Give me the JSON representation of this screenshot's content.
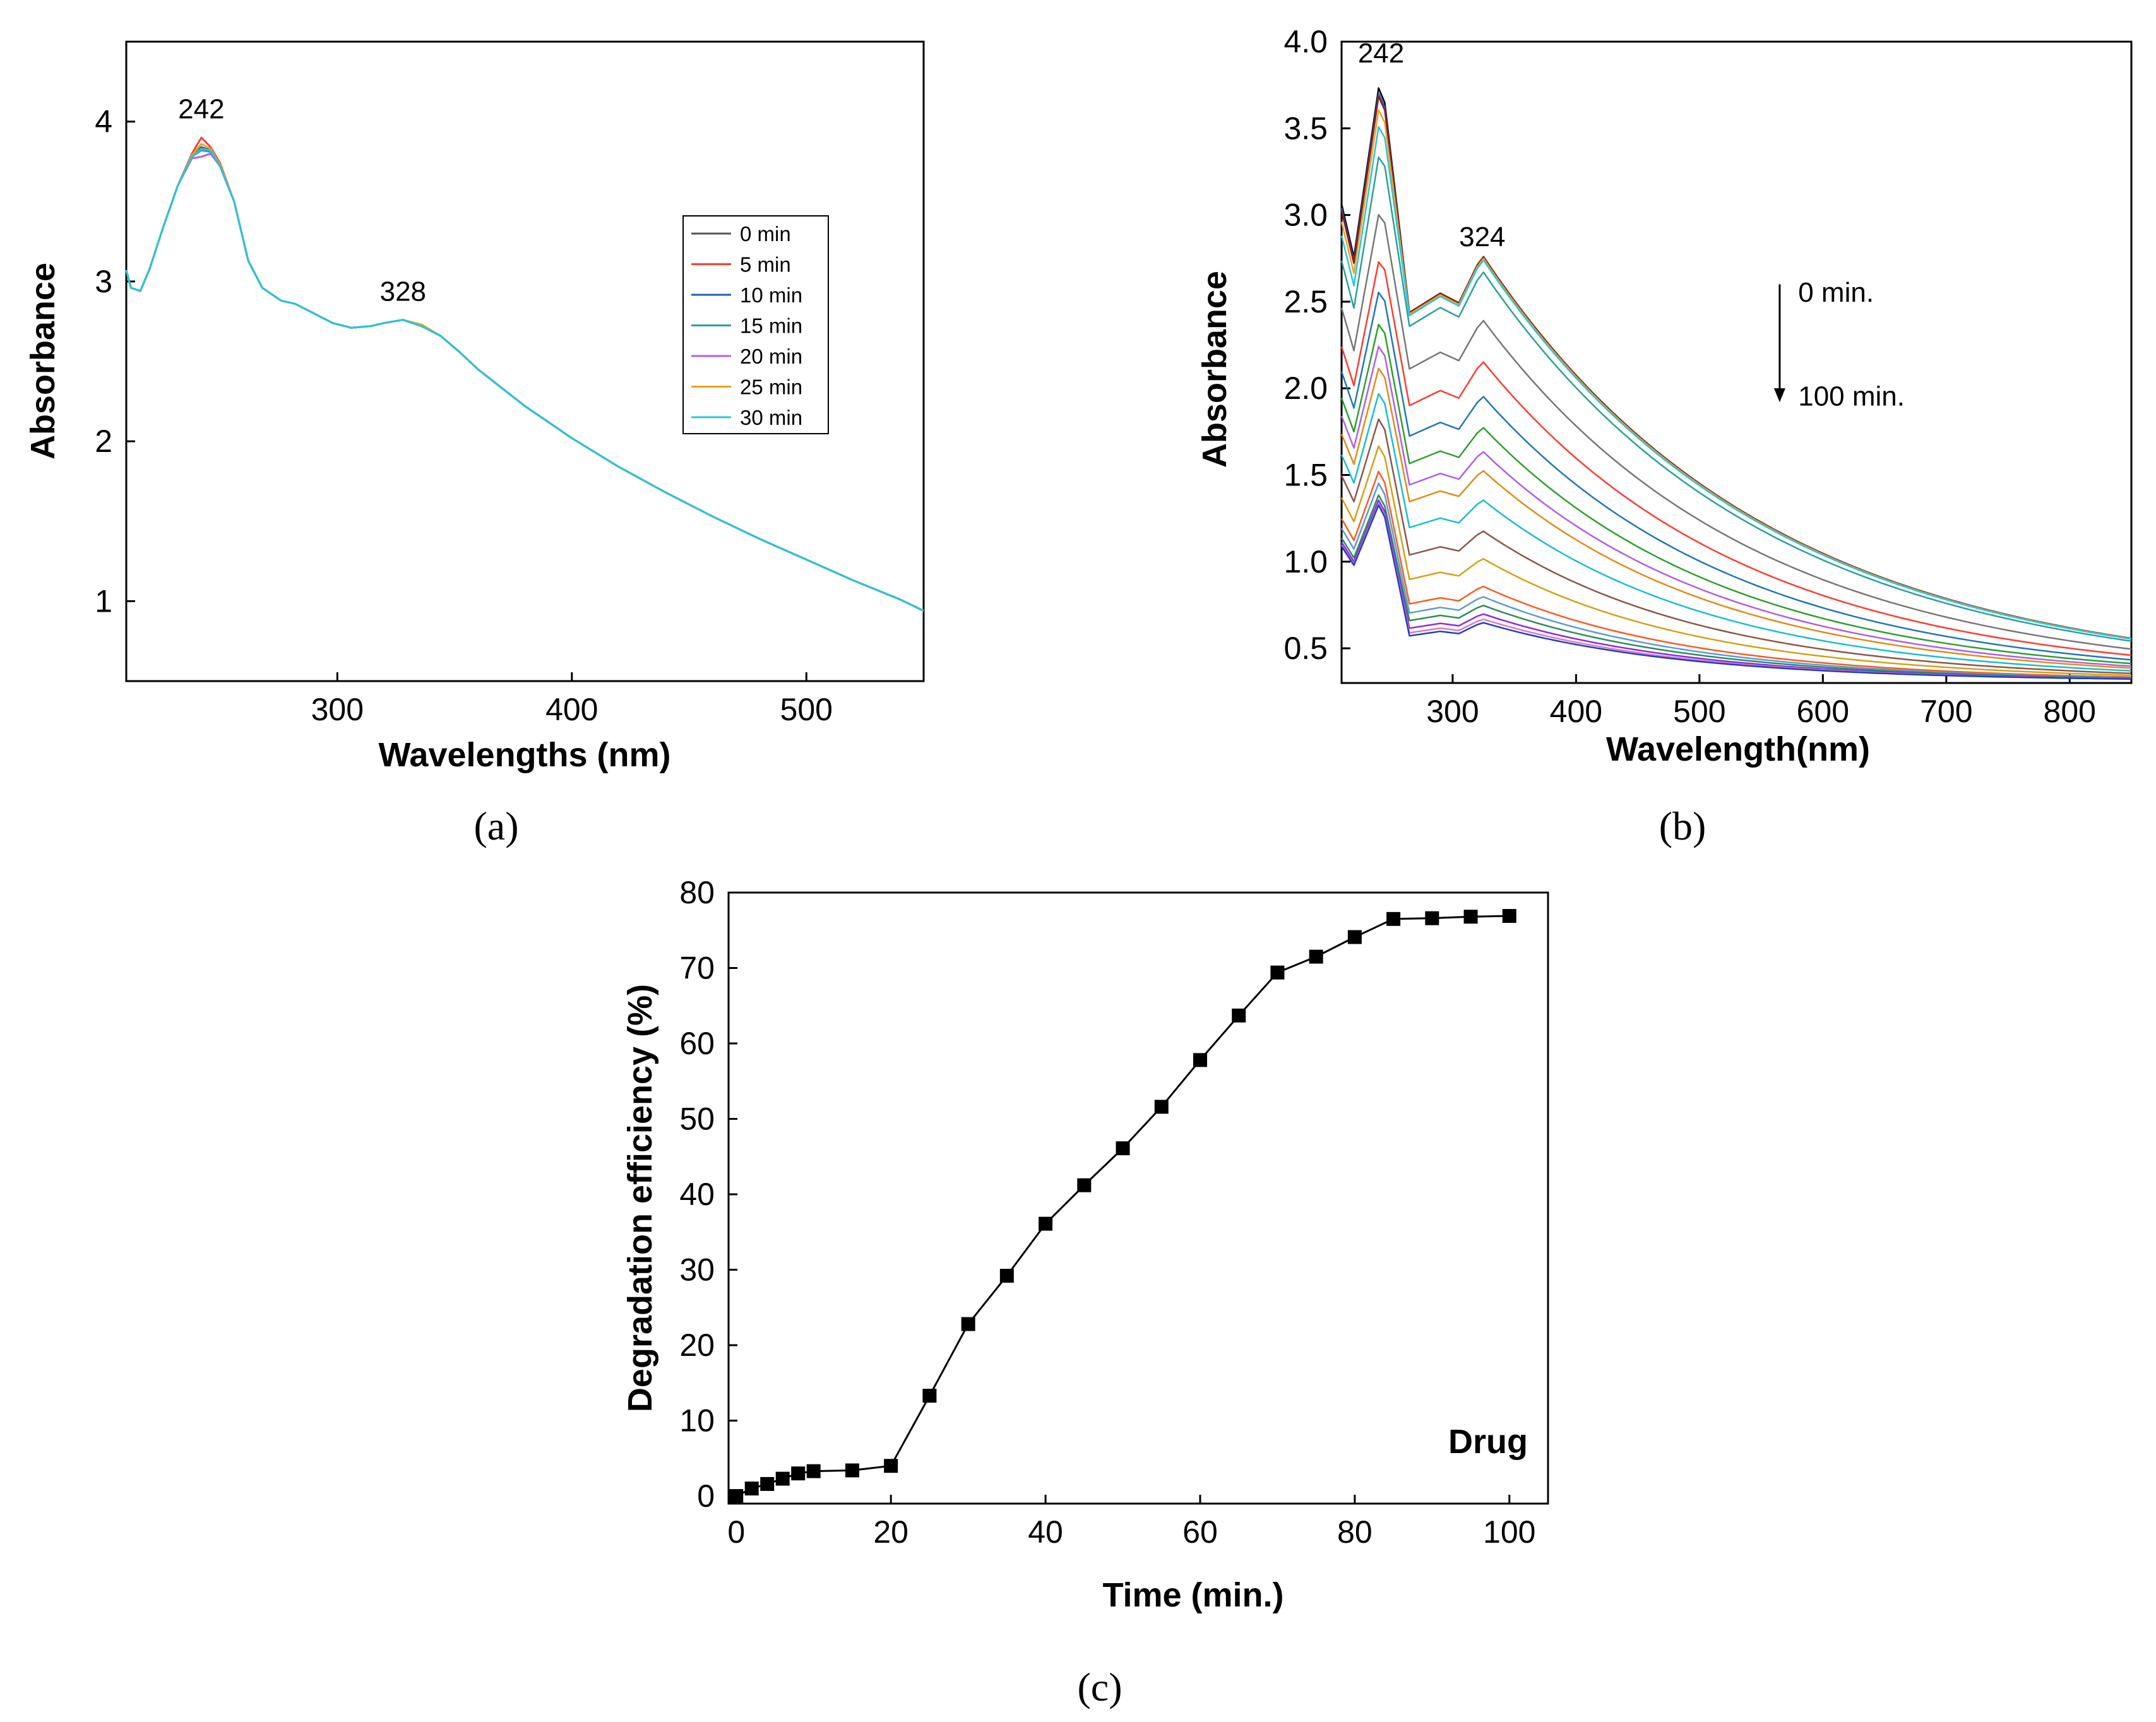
{
  "panel_labels": {
    "a": "(a)",
    "b": "(b)",
    "c": "(c)"
  },
  "chart_data": [
    {
      "panel": "a",
      "type": "line",
      "xlabel": "Wavelengths (nm)",
      "ylabel": "Absorbance",
      "xlim": [
        210,
        550
      ],
      "ylim": [
        0.5,
        4.5
      ],
      "xticks": [
        300,
        400,
        500
      ],
      "yticks": [
        1,
        2,
        3,
        4
      ],
      "grid": false,
      "legend": "right",
      "annotations": [
        {
          "text": "242",
          "x": 242,
          "y": 4.02
        },
        {
          "text": "328",
          "x": 328,
          "y": 2.88
        }
      ],
      "x": [
        210,
        212,
        216,
        220,
        226,
        232,
        238,
        242,
        246,
        250,
        256,
        262,
        268,
        272,
        276,
        282,
        290,
        298,
        306,
        314,
        320,
        328,
        336,
        344,
        352,
        360,
        380,
        400,
        420,
        440,
        460,
        480,
        500,
        520,
        540,
        550
      ],
      "series": [
        {
          "name": "0 min",
          "color": "#555555",
          "values": [
            3.07,
            2.96,
            2.94,
            3.08,
            3.35,
            3.6,
            3.78,
            3.83,
            3.82,
            3.72,
            3.5,
            3.13,
            2.96,
            2.92,
            2.88,
            2.86,
            2.8,
            2.74,
            2.71,
            2.72,
            2.74,
            2.76,
            2.72,
            2.66,
            2.56,
            2.45,
            2.22,
            2.02,
            1.84,
            1.68,
            1.53,
            1.39,
            1.26,
            1.13,
            1.01,
            0.94
          ]
        },
        {
          "name": "5 min",
          "color": "#ff3b30",
          "values": [
            3.07,
            2.96,
            2.94,
            3.08,
            3.35,
            3.6,
            3.8,
            3.9,
            3.84,
            3.74,
            3.5,
            3.13,
            2.96,
            2.92,
            2.88,
            2.86,
            2.8,
            2.74,
            2.71,
            2.72,
            2.74,
            2.76,
            2.72,
            2.66,
            2.56,
            2.45,
            2.22,
            2.02,
            1.84,
            1.68,
            1.53,
            1.39,
            1.26,
            1.13,
            1.01,
            0.94
          ]
        },
        {
          "name": "10 min",
          "color": "#1f5fbf",
          "values": [
            3.07,
            2.96,
            2.94,
            3.08,
            3.35,
            3.6,
            3.79,
            3.84,
            3.82,
            3.72,
            3.5,
            3.13,
            2.96,
            2.92,
            2.88,
            2.86,
            2.8,
            2.74,
            2.71,
            2.72,
            2.74,
            2.76,
            2.72,
            2.66,
            2.56,
            2.45,
            2.22,
            2.02,
            1.84,
            1.68,
            1.53,
            1.39,
            1.26,
            1.13,
            1.01,
            0.94
          ]
        },
        {
          "name": "15 min",
          "color": "#2aa198",
          "values": [
            3.07,
            2.96,
            2.94,
            3.08,
            3.35,
            3.6,
            3.78,
            3.82,
            3.81,
            3.72,
            3.5,
            3.13,
            2.96,
            2.92,
            2.88,
            2.86,
            2.8,
            2.74,
            2.71,
            2.72,
            2.74,
            2.76,
            2.72,
            2.66,
            2.56,
            2.45,
            2.22,
            2.02,
            1.84,
            1.68,
            1.53,
            1.39,
            1.26,
            1.13,
            1.01,
            0.94
          ]
        },
        {
          "name": "20 min",
          "color": "#b05ee6",
          "values": [
            3.07,
            2.96,
            2.94,
            3.08,
            3.35,
            3.6,
            3.77,
            3.78,
            3.8,
            3.72,
            3.5,
            3.13,
            2.96,
            2.92,
            2.88,
            2.86,
            2.8,
            2.74,
            2.71,
            2.72,
            2.74,
            2.76,
            2.72,
            2.66,
            2.56,
            2.45,
            2.22,
            2.02,
            1.84,
            1.68,
            1.53,
            1.39,
            1.26,
            1.13,
            1.01,
            0.94
          ]
        },
        {
          "name": "25 min",
          "color": "#f0a020",
          "values": [
            3.07,
            2.96,
            2.94,
            3.08,
            3.35,
            3.6,
            3.79,
            3.86,
            3.83,
            3.73,
            3.5,
            3.13,
            2.96,
            2.92,
            2.88,
            2.86,
            2.8,
            2.74,
            2.71,
            2.72,
            2.74,
            2.76,
            2.73,
            2.66,
            2.56,
            2.45,
            2.22,
            2.02,
            1.84,
            1.68,
            1.53,
            1.39,
            1.26,
            1.13,
            1.01,
            0.94
          ]
        },
        {
          "name": "30 min",
          "color": "#27c6d9",
          "values": [
            3.07,
            2.96,
            2.94,
            3.08,
            3.35,
            3.6,
            3.78,
            3.83,
            3.82,
            3.72,
            3.5,
            3.13,
            2.96,
            2.92,
            2.88,
            2.86,
            2.8,
            2.74,
            2.71,
            2.72,
            2.74,
            2.76,
            2.72,
            2.66,
            2.56,
            2.45,
            2.22,
            2.02,
            1.84,
            1.68,
            1.53,
            1.39,
            1.26,
            1.13,
            1.01,
            0.94
          ]
        }
      ]
    },
    {
      "panel": "b",
      "type": "line",
      "xlabel": "Wavelength(nm)",
      "ylabel": "Absorbance",
      "xlim": [
        210,
        850
      ],
      "ylim": [
        0.3,
        4.0
      ],
      "xticks": [
        300,
        400,
        500,
        600,
        700,
        800
      ],
      "yticks": [
        0.5,
        1.0,
        1.5,
        2.0,
        2.5,
        3.0,
        3.5,
        4.0
      ],
      "grid": false,
      "annotations": [
        {
          "text": "242",
          "x": 242,
          "y": 3.88
        },
        {
          "text": "324",
          "x": 324,
          "y": 2.82
        },
        {
          "text": "0 min.",
          "x": 580,
          "y": 2.5
        },
        {
          "text": "100 min.",
          "x": 580,
          "y": 1.9
        }
      ],
      "arrow": {
        "x": 565,
        "from": 2.6,
        "to": 1.92
      },
      "profile": {
        "peak1_height": [
          3.83,
          3.8,
          3.78,
          3.7,
          3.6,
          3.42,
          3.08,
          2.8,
          2.62,
          2.43,
          2.3,
          2.17,
          2.02,
          1.87,
          1.71,
          1.56,
          1.49,
          1.42,
          1.39,
          1.37,
          1.36
        ],
        "band2_height": [
          2.77,
          2.77,
          2.77,
          2.76,
          2.75,
          2.68,
          2.4,
          2.16,
          1.96,
          1.78,
          1.64,
          1.53,
          1.36,
          1.18,
          1.02,
          0.86,
          0.8,
          0.75,
          0.7,
          0.67,
          0.65
        ],
        "tail_value": 0.31
      },
      "series_colors": [
        "#000000",
        "#1f5fbf",
        "#8b1a1a",
        "#f0a020",
        "#27c6d9",
        "#2aa198",
        "#777777",
        "#ff3b30",
        "#1f77b4",
        "#2ca02c",
        "#b05ee6",
        "#e08c1a",
        "#17becf",
        "#8c564b",
        "#d4a017",
        "#ff5a1f",
        "#5b9bd5",
        "#2e8b57",
        "#8a2be2",
        "#e377c2",
        "#1f3fbf"
      ]
    },
    {
      "panel": "c",
      "type": "scatter",
      "xlabel": "Time (min.)",
      "ylabel": "Degradation efficiency (%)",
      "xlim": [
        -1,
        105
      ],
      "ylim": [
        -1,
        80
      ],
      "xticks": [
        0,
        20,
        40,
        60,
        80,
        100
      ],
      "yticks": [
        0,
        10,
        20,
        30,
        40,
        50,
        60,
        70,
        80
      ],
      "grid": false,
      "series_label": "Drug",
      "marker": "square",
      "x": [
        0,
        2,
        4,
        6,
        8,
        10,
        15,
        20,
        25,
        30,
        35,
        40,
        45,
        50,
        55,
        60,
        65,
        70,
        75,
        80,
        85,
        90,
        95,
        100
      ],
      "y": [
        0,
        1,
        1.6,
        2.3,
        3.0,
        3.3,
        3.4,
        4.0,
        13.3,
        22.8,
        29.2,
        36.1,
        41.2,
        46.1,
        51.6,
        57.8,
        63.7,
        69.4,
        71.5,
        74.1,
        76.5,
        76.6,
        76.8,
        76.9
      ]
    }
  ]
}
